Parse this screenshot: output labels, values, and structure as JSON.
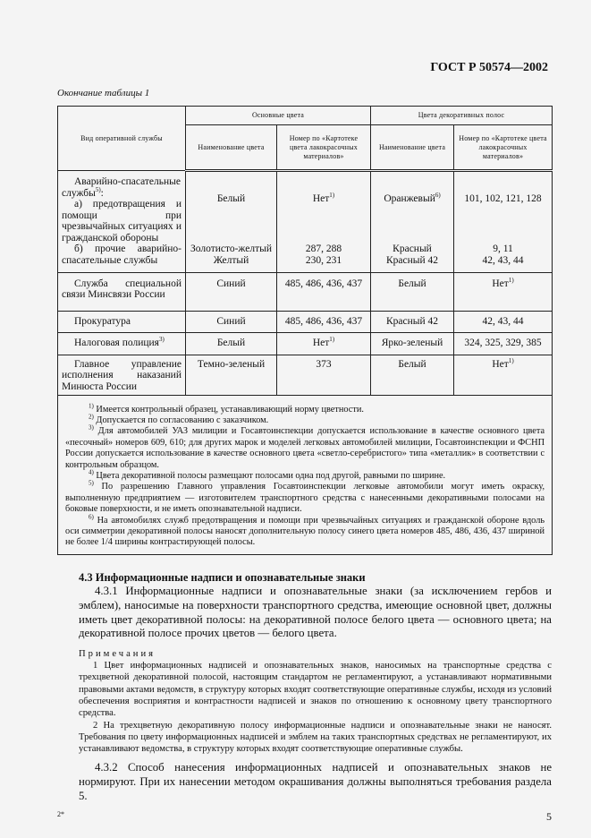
{
  "header": {
    "doc_code": "ГОСТ Р 50574—2002"
  },
  "table": {
    "caption": "Окончание таблицы 1",
    "col_service": "Вид оперативной службы",
    "group_main": "Основные цвета",
    "group_stripes": "Цвета декоративных полос",
    "col_name": "Наименование цвета",
    "col_number": "Номер по «Картотеке цвета лакокрасочных материалов»",
    "rows": [
      {
        "service": "Аварийно-спасательные службы",
        "service_sup": "5)",
        "service_tail": ":",
        "sub": "а) предотвращения и помощи при чрезвычайных ситуациях и гражданской обороны",
        "main_name": "Белый",
        "main_num": "Нет",
        "main_num_sup": "1)",
        "stripe_name": "Оранжевый",
        "stripe_name_sup": "6)",
        "stripe_num": "101, 102, 121, 128"
      },
      {
        "service": "б) прочие аварийно-спасательные службы",
        "main_name": "Золотисто-желтый",
        "main_name2": "Желтый",
        "main_num": "287, 288",
        "main_num2": "230, 231",
        "stripe_name": "Красный",
        "stripe_name2": "Красный 42",
        "stripe_num": "9, 11",
        "stripe_num2": "42, 43, 44"
      },
      {
        "service": "Служба специальной связи Минсвязи России",
        "main_name": "Синий",
        "main_num": "485, 486, 436, 437",
        "stripe_name": "Белый",
        "stripe_num": "Нет",
        "stripe_num_sup": "1)"
      },
      {
        "service": "Прокуратура",
        "main_name": "Синий",
        "main_num": "485, 486, 436, 437",
        "stripe_name": "Красный 42",
        "stripe_num": "42, 43, 44"
      },
      {
        "service": "Налоговая полиция",
        "service_sup": "3)",
        "main_name": "Белый",
        "main_num": "Нет",
        "main_num_sup": "1)",
        "stripe_name": "Ярко-зеленый",
        "stripe_num": "324, 325, 329, 385"
      },
      {
        "service": "Главное управление исполнения наказаний Минюста России",
        "main_name": "Темно-зеленый",
        "main_num": "373",
        "stripe_name": "Белый",
        "stripe_num": "Нет",
        "stripe_num_sup": "1)"
      }
    ],
    "footnotes": [
      {
        "mark": "1)",
        "text": " Имеется контрольный образец, устанавливающий норму цветности."
      },
      {
        "mark": "2)",
        "text": " Допускается по согласованию с заказчиком."
      },
      {
        "mark": "3)",
        "text": " Для автомобилей УАЗ милиции и Госавтоинспекции допускается использование в качестве основного цвета «песочный» номеров 609, 610; для других марок и моделей легковых автомобилей милиции, Госавтоинспекции и ФСНП России допускается использование в качестве основного цвета «светло-серебристого» типа «металлик» в соответствии с контрольным образцом."
      },
      {
        "mark": "4)",
        "text": " Цвета декоративной полосы размещают полосами одна под другой, равными по ширине."
      },
      {
        "mark": "5)",
        "text": " По разрешению Главного управления Госавтоинспекции легковые автомобили могут иметь окраску, выполненную предприятием — изготовителем транспортного средства с нанесенными декоративными полосами на боковые поверхности, и не иметь опознавательной надписи."
      },
      {
        "mark": "6)",
        "text": " На автомобилях служб предотвращения и помощи при чрезвычайных ситуациях и гражданской обороне вдоль оси симметрии декоративной полосы наносят дополнительную полосу синего цвета номеров 485, 486, 436, 437 шириной не более 1/4 ширины контрастирующей полосы."
      }
    ]
  },
  "section": {
    "heading": "4.3 Информационные надписи и опознавательные знаки",
    "p431": "4.3.1 Информационные надписи и опознавательные знаки (за исключением гербов и эмблем), наносимые на поверхности транспортного средства, имеющие основной цвет, должны иметь цвет декоративной полосы: на декоративной полосе белого цвета — основного цвета; на декоративной полосе прочих цветов — белого цвета.",
    "notes_title": "Примечания",
    "note1": "1 Цвет информационных надписей и опознавательных знаков, наносимых на транспортные средства с трехцветной декоративной полосой, настоящим стандартом не регламентируют, а устанавливают нормативными правовыми актами ведомств, в структуру которых входят соответствующие оперативные службы, исходя из условий обеспечения восприятия и контрастности надписей и знаков по отношению к основному цвету транспортного средства.",
    "note2": "2 На трехцветную декоративную полосу информационные надписи и опознавательные знаки не наносят. Требования по цвету информационных надписей и эмблем на таких транспортных средствах не регламентируют, их устанавливают ведомства, в структуру которых входят соответствующие оперативные службы.",
    "p432": "4.3.2 Способ нанесения информационных надписей и опознавательных знаков не нормируют. При их нанесении методом окрашивания должны выполняться требования раздела 5."
  },
  "footer": {
    "sheet_mark": "2*",
    "page_number": "5"
  }
}
